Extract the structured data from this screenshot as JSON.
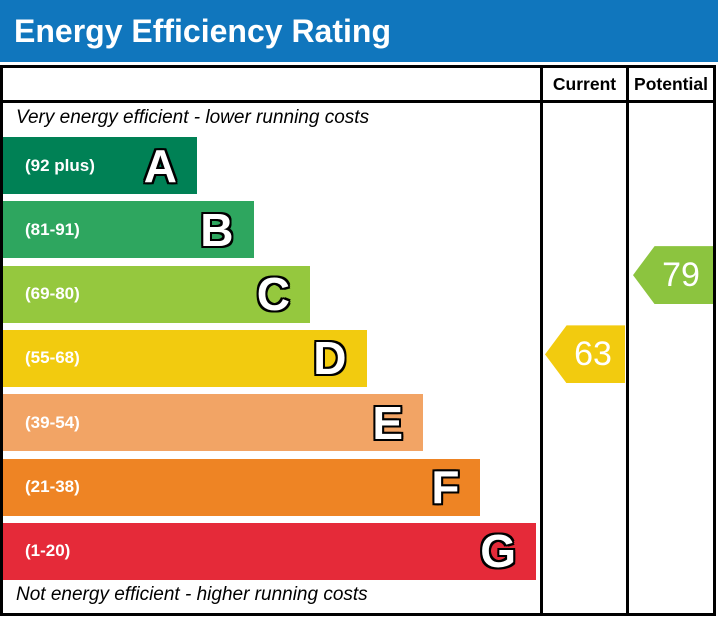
{
  "title_bar": {
    "title": "Energy Efficiency Rating",
    "background": "#1076bd"
  },
  "captions": {
    "top": "Very energy efficient - lower running costs",
    "bottom": "Not energy efficient - higher running costs"
  },
  "chart_data": {
    "type": "bar",
    "title": "Energy Efficiency Rating",
    "categories": [
      "A",
      "B",
      "C",
      "D",
      "E",
      "F",
      "G"
    ],
    "bands": [
      {
        "letter": "A",
        "range_label": "(92 plus)",
        "min": 92,
        "max": 100,
        "color": "#008155"
      },
      {
        "letter": "B",
        "range_label": "(81-91)",
        "min": 81,
        "max": 91,
        "color": "#2ea65f"
      },
      {
        "letter": "C",
        "range_label": "(69-80)",
        "min": 69,
        "max": 80,
        "color": "#95c83e"
      },
      {
        "letter": "D",
        "range_label": "(55-68)",
        "min": 55,
        "max": 68,
        "color": "#f2cb0f"
      },
      {
        "letter": "E",
        "range_label": "(39-54)",
        "min": 39,
        "max": 54,
        "color": "#f2a465"
      },
      {
        "letter": "F",
        "range_label": "(21-38)",
        "min": 21,
        "max": 38,
        "color": "#ee8424"
      },
      {
        "letter": "G",
        "range_label": "(1-20)",
        "min": 1,
        "max": 20,
        "color": "#e52a39"
      }
    ],
    "ratings": {
      "current": {
        "label": "Current",
        "value": 63,
        "color": "#f2cb0f"
      },
      "potential": {
        "label": "Potential",
        "value": 79,
        "color": "#8cc43f"
      }
    },
    "xlabel": "",
    "ylabel": "",
    "legend_position": "top-right-columns"
  }
}
